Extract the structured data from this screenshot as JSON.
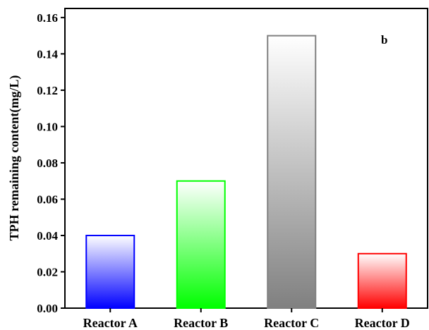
{
  "chart_data": {
    "type": "bar",
    "panel_label": "b",
    "categories": [
      "Reactor A",
      "Reactor B",
      "Reactor C",
      "Reactor D"
    ],
    "values": [
      0.04,
      0.07,
      0.15,
      0.03
    ],
    "ylabel": "TPH remaining content(mg/L)",
    "ylim": [
      0,
      0.165
    ],
    "yticks": [
      "0.00",
      "0.02",
      "0.04",
      "0.06",
      "0.08",
      "0.10",
      "0.12",
      "0.14",
      "0.16"
    ],
    "grid": false,
    "bar_colors": [
      "#0000ff",
      "#00ff00",
      "#808080",
      "#ff0000"
    ]
  }
}
